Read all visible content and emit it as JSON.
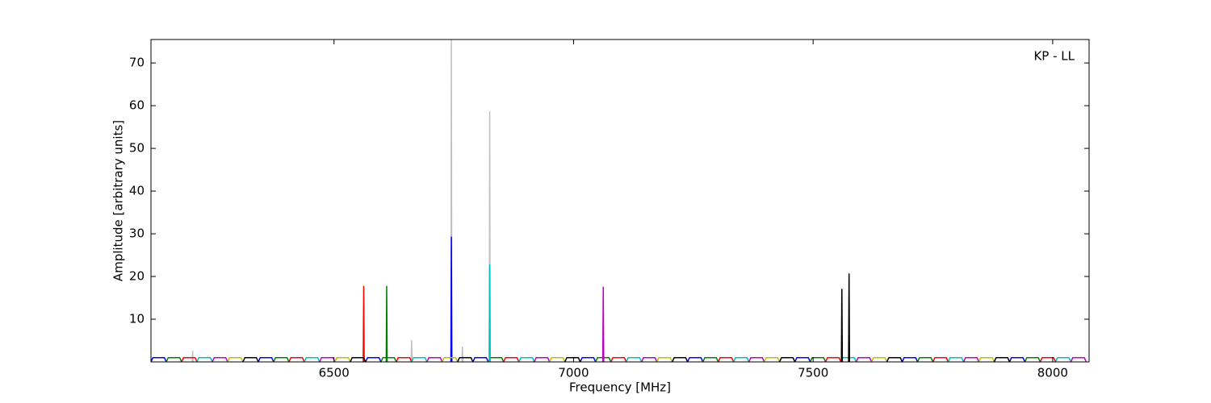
{
  "chart_data": {
    "type": "line",
    "xlabel": "Frequency [MHz]",
    "ylabel": "Amplitude [arbitrary units]",
    "annotation": "KP - LL",
    "xlim": [
      6118,
      8076
    ],
    "ylim": [
      0,
      75.5
    ],
    "xticks": [
      6500,
      7000,
      7500,
      8000
    ],
    "yticks": [
      10,
      20,
      30,
      40,
      50,
      60,
      70
    ],
    "series": [
      {
        "color": "#c0c0c0",
        "x": [
          6204,
          6205,
          6206,
          null,
          6661,
          6662,
          6663,
          null,
          6744,
          6745,
          6746,
          null,
          6767,
          6768,
          6769,
          null,
          6824,
          6825,
          6826
        ],
        "values": [
          0,
          2.5,
          0,
          null,
          0,
          5,
          0,
          null,
          0,
          75.5,
          0,
          null,
          0,
          3.5,
          0,
          null,
          0,
          58.6,
          0
        ]
      },
      {
        "color": "#0000ff",
        "x": [
          6118,
          6122,
          6146,
          6150,
          null,
          6342,
          6346,
          6370,
          6374,
          null,
          6566,
          6570,
          6594,
          6598,
          null,
          6790,
          6794,
          6818,
          6822,
          null,
          7014,
          7018,
          7042,
          7046,
          null,
          7238,
          7242,
          7266,
          7270,
          null,
          7462,
          7466,
          7490,
          7494,
          null,
          7686,
          7690,
          7714,
          7718,
          null,
          7910,
          7914,
          7938,
          7942,
          null,
          6744,
          6745,
          6746
        ],
        "values": [
          0,
          1,
          1,
          0,
          null,
          0,
          1,
          1,
          0,
          null,
          0,
          1,
          1,
          0,
          null,
          0,
          1,
          1,
          0,
          null,
          0,
          1,
          1,
          0,
          null,
          0,
          1,
          1,
          0,
          null,
          0,
          1,
          1,
          0,
          null,
          0,
          1,
          1,
          0,
          null,
          0,
          1,
          1,
          0,
          null,
          0,
          29.2,
          0
        ]
      },
      {
        "color": "#008000",
        "x": [
          6150,
          6154,
          6178,
          6182,
          null,
          6374,
          6378,
          6402,
          6406,
          null,
          6598,
          6602,
          6626,
          6630,
          null,
          6822,
          6826,
          6850,
          6854,
          null,
          7046,
          7050,
          7074,
          7078,
          null,
          7270,
          7274,
          7298,
          7302,
          null,
          7494,
          7498,
          7522,
          7526,
          null,
          7718,
          7722,
          7746,
          7750,
          null,
          7942,
          7946,
          7970,
          7974,
          null,
          6609,
          6610,
          6611
        ],
        "values": [
          0,
          1,
          1,
          0,
          null,
          0,
          1,
          1,
          0,
          null,
          0,
          1,
          1,
          0,
          null,
          0,
          1,
          1,
          0,
          null,
          0,
          1,
          1,
          0,
          null,
          0,
          1,
          1,
          0,
          null,
          0,
          1,
          1,
          0,
          null,
          0,
          1,
          1,
          0,
          null,
          0,
          1,
          1,
          0,
          null,
          0,
          17.7,
          0
        ]
      },
      {
        "color": "#ff0000",
        "x": [
          6182,
          6186,
          6210,
          6214,
          null,
          6406,
          6410,
          6434,
          6438,
          null,
          6630,
          6634,
          6658,
          6662,
          null,
          6854,
          6858,
          6882,
          6886,
          null,
          7078,
          7082,
          7106,
          7110,
          null,
          7302,
          7306,
          7330,
          7334,
          null,
          7526,
          7530,
          7554,
          7558,
          null,
          7750,
          7754,
          7778,
          7782,
          null,
          7974,
          7978,
          8002,
          8006,
          null,
          6561,
          6562,
          6563
        ],
        "values": [
          0,
          1,
          1,
          0,
          null,
          0,
          1,
          1,
          0,
          null,
          0,
          1,
          1,
          0,
          null,
          0,
          1,
          1,
          0,
          null,
          0,
          1,
          1,
          0,
          null,
          0,
          1,
          1,
          0,
          null,
          0,
          1,
          1,
          0,
          null,
          0,
          1,
          1,
          0,
          null,
          0,
          1,
          1,
          0,
          null,
          0,
          17.7,
          0
        ]
      },
      {
        "color": "#00bfbf",
        "x": [
          6214,
          6218,
          6242,
          6246,
          null,
          6438,
          6442,
          6466,
          6470,
          null,
          6662,
          6666,
          6690,
          6694,
          null,
          6886,
          6890,
          6914,
          6918,
          null,
          7110,
          7114,
          7138,
          7142,
          null,
          7334,
          7338,
          7362,
          7366,
          null,
          7558,
          7562,
          7586,
          7590,
          null,
          7782,
          7786,
          7810,
          7814,
          null,
          8006,
          8010,
          8034,
          8038,
          null,
          6824,
          6825,
          6826
        ],
        "values": [
          0,
          1,
          1,
          0,
          null,
          0,
          1,
          1,
          0,
          null,
          0,
          1,
          1,
          0,
          null,
          0,
          1,
          1,
          0,
          null,
          0,
          1,
          1,
          0,
          null,
          0,
          1,
          1,
          0,
          null,
          0,
          1,
          1,
          0,
          null,
          0,
          1,
          1,
          0,
          null,
          0,
          1,
          1,
          0,
          null,
          0,
          22.7,
          0
        ]
      },
      {
        "color": "#bf00bf",
        "x": [
          6246,
          6250,
          6274,
          6278,
          null,
          6470,
          6474,
          6498,
          6502,
          null,
          6694,
          6698,
          6722,
          6726,
          null,
          6918,
          6922,
          6946,
          6950,
          null,
          7142,
          7146,
          7170,
          7174,
          null,
          7366,
          7370,
          7394,
          7398,
          null,
          7590,
          7594,
          7618,
          7622,
          null,
          7814,
          7818,
          7842,
          7846,
          null,
          8038,
          8042,
          8066,
          8070,
          null,
          7061,
          7062,
          7063
        ],
        "values": [
          0,
          1,
          1,
          0,
          null,
          0,
          1,
          1,
          0,
          null,
          0,
          1,
          1,
          0,
          null,
          0,
          1,
          1,
          0,
          null,
          0,
          1,
          1,
          0,
          null,
          0,
          1,
          1,
          0,
          null,
          0,
          1,
          1,
          0,
          null,
          0,
          1,
          1,
          0,
          null,
          0,
          1,
          1,
          0,
          null,
          0,
          17.5,
          0
        ]
      },
      {
        "color": "#bfbf00",
        "x": [
          6278,
          6282,
          6306,
          6310,
          null,
          6502,
          6506,
          6530,
          6534,
          null,
          6726,
          6730,
          6754,
          6758,
          null,
          6950,
          6954,
          6978,
          6982,
          null,
          7174,
          7178,
          7202,
          7206,
          null,
          7398,
          7402,
          7426,
          7430,
          null,
          7622,
          7626,
          7650,
          7654,
          null,
          7846,
          7850,
          7874,
          7878
        ],
        "values": [
          0,
          1,
          1,
          0,
          null,
          0,
          1,
          1,
          0,
          null,
          0,
          1,
          1,
          0,
          null,
          0,
          1,
          1,
          0,
          null,
          0,
          1,
          1,
          0,
          null,
          0,
          1,
          1,
          0,
          null,
          0,
          1,
          1,
          0,
          null,
          0,
          1,
          1,
          0
        ]
      },
      {
        "color": "#000000",
        "x": [
          6310,
          6314,
          6338,
          6342,
          null,
          6534,
          6538,
          6562,
          6566,
          null,
          6758,
          6762,
          6786,
          6790,
          null,
          6982,
          6986,
          7010,
          7014,
          null,
          7206,
          7210,
          7234,
          7238,
          null,
          7430,
          7434,
          7458,
          7462,
          null,
          7654,
          7658,
          7682,
          7686,
          null,
          7878,
          7882,
          7906,
          7910,
          null,
          7559,
          7560,
          7561,
          null,
          7574,
          7575,
          7576
        ],
        "values": [
          0,
          1,
          1,
          0,
          null,
          0,
          1,
          1,
          0,
          null,
          0,
          1,
          1,
          0,
          null,
          0,
          1,
          1,
          0,
          null,
          0,
          1,
          1,
          0,
          null,
          0,
          1,
          1,
          0,
          null,
          0,
          1,
          1,
          0,
          null,
          0,
          1,
          1,
          0,
          null,
          0,
          17,
          0,
          null,
          0,
          20.6,
          0
        ]
      }
    ]
  }
}
